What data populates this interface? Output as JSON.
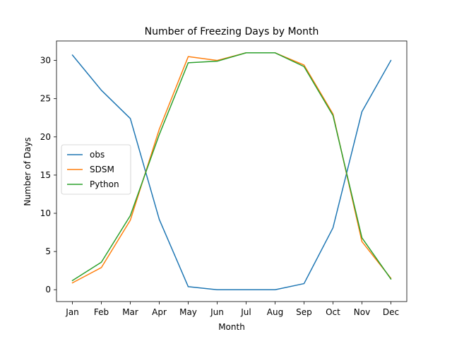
{
  "chart_data": {
    "type": "line",
    "title": "Number of Freezing Days by Month",
    "xlabel": "Month",
    "ylabel": "Number of Days",
    "categories": [
      "Jan",
      "Feb",
      "Mar",
      "Apr",
      "May",
      "Jun",
      "Jul",
      "Aug",
      "Sep",
      "Oct",
      "Nov",
      "Dec"
    ],
    "yticks": [
      0,
      5,
      10,
      15,
      20,
      25,
      30
    ],
    "ylim": [
      -1.55,
      32.55
    ],
    "grid": false,
    "legend_position": "center-left",
    "series": [
      {
        "name": "obs",
        "color": "#1f77b4",
        "values": [
          30.7,
          26.1,
          22.4,
          9.2,
          0.4,
          0.0,
          0.0,
          0.0,
          0.8,
          8.1,
          23.3,
          30.0
        ]
      },
      {
        "name": "SDSM",
        "color": "#ff7f0e",
        "values": [
          0.9,
          2.9,
          9.1,
          21.0,
          30.5,
          30.0,
          31.0,
          31.0,
          29.4,
          23.0,
          6.3,
          1.5
        ]
      },
      {
        "name": "Python",
        "color": "#2ca02c",
        "values": [
          1.2,
          3.6,
          9.7,
          20.3,
          29.7,
          29.9,
          31.0,
          31.0,
          29.2,
          22.8,
          6.8,
          1.4
        ]
      }
    ]
  }
}
